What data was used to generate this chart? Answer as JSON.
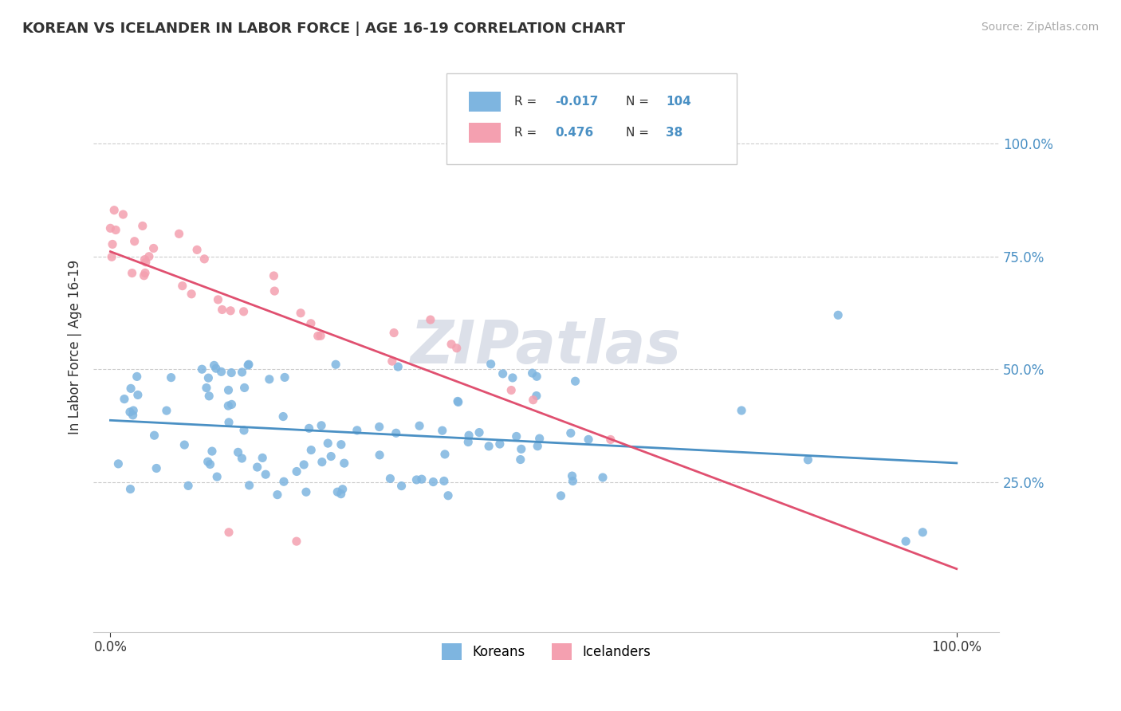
{
  "title": "KOREAN VS ICELANDER IN LABOR FORCE | AGE 16-19 CORRELATION CHART",
  "source_text": "Source: ZipAtlas.com",
  "ylabel": "In Labor Force | Age 16-19",
  "korean_color": "#7eb5e0",
  "icelander_color": "#f4a0b0",
  "korean_line_color": "#4a90c4",
  "icelander_line_color": "#e05070",
  "legend_korean_label": "Koreans",
  "legend_icelander_label": "Icelanders",
  "watermark_text": "ZIPatlas",
  "watermark_color": "#c0c8d8",
  "background_color": "#ffffff",
  "grid_color": "#cccccc",
  "korean_R": -0.017,
  "korean_N": 104,
  "icelander_R": 0.476,
  "icelander_N": 38
}
